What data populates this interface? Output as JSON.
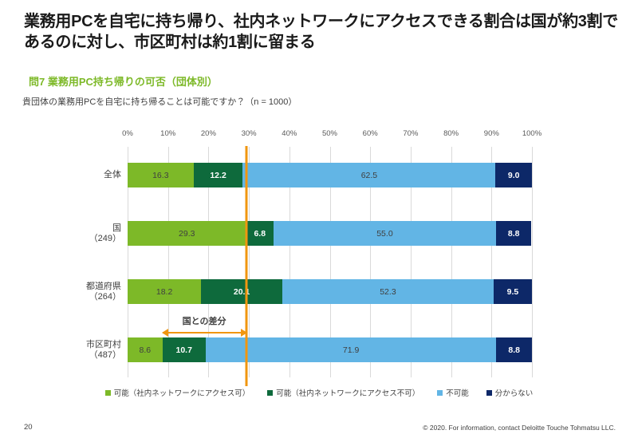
{
  "page": {
    "title_line1": "業務用PCを自宅に持ち帰り、社内ネットワークにアクセスできる割合は国が約3割で",
    "title_line2": "あるのに対し、市区町村は約1割に留まる",
    "section_heading": "問7 業務用PC持ち帰りの可否（団体別）",
    "question": "貴団体の業務用PCを自宅に持ち帰ることは可能ですか？（n = 1000）",
    "page_number": "20",
    "copyright": "© 2020. For information, contact Deloitte Touche Tohmatsu LLC."
  },
  "colors": {
    "accent_green": "#7DB928",
    "dark_green": "#0E6A3C",
    "light_blue": "#62B5E5",
    "navy": "#0D2868",
    "orange": "#F0960F",
    "gridline": "#D9D9D9",
    "text": "#404040"
  },
  "chart_data": {
    "type": "bar",
    "orientation": "horizontal",
    "stacked": true,
    "xlim": [
      0,
      100
    ],
    "x_ticks": [
      "0%",
      "10%",
      "20%",
      "30%",
      "40%",
      "50%",
      "60%",
      "70%",
      "80%",
      "90%",
      "100%"
    ],
    "grid": true,
    "legend_position": "bottom",
    "categories": [
      {
        "label": "全体",
        "sub": ""
      },
      {
        "label": "国",
        "sub": "（249）"
      },
      {
        "label": "都道府県",
        "sub": "（264）"
      },
      {
        "label": "市区町村",
        "sub": "（487）"
      }
    ],
    "series": [
      {
        "name": "可能（社内ネットワークにアクセス可）",
        "color": "#7DB928",
        "label_color": "#404040",
        "label_bold": false,
        "values": [
          16.3,
          29.3,
          18.2,
          8.6
        ]
      },
      {
        "name": "可能（社内ネットワークにアクセス不可）",
        "color": "#0E6A3C",
        "label_color": "#FFFFFF",
        "label_bold": true,
        "values": [
          12.2,
          6.8,
          20.1,
          10.7
        ]
      },
      {
        "name": "不可能",
        "color": "#62B5E5",
        "label_color": "#404040",
        "label_bold": false,
        "values": [
          62.5,
          55.0,
          52.3,
          71.9
        ]
      },
      {
        "name": "分からない",
        "color": "#0D2868",
        "label_color": "#FFFFFF",
        "label_bold": true,
        "values": [
          9.0,
          8.8,
          9.5,
          8.8
        ]
      }
    ],
    "reference_line": {
      "value": 29.3,
      "color": "#F0960F"
    },
    "annotation": {
      "label": "国との差分",
      "from": 8.6,
      "to": 29.3,
      "row_index": 3
    }
  }
}
